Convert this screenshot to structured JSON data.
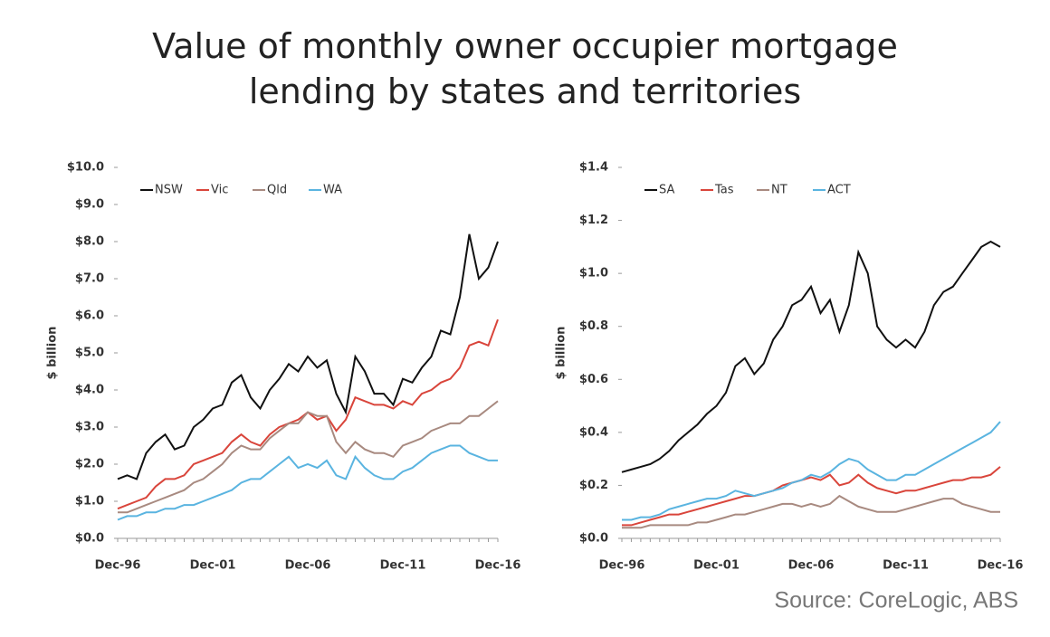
{
  "title": "Value of monthly owner occupier mortgage lending by states and territories",
  "source": "Source: CoreLogic, ABS",
  "chart_data": [
    {
      "type": "line",
      "y_label": "$ billion",
      "legend": "top-left",
      "categories": [
        "Dec-96",
        null,
        null,
        null,
        null,
        null,
        null,
        null,
        null,
        null,
        "Dec-01",
        null,
        null,
        null,
        null,
        null,
        null,
        null,
        null,
        null,
        "Dec-06",
        null,
        null,
        null,
        null,
        null,
        null,
        null,
        null,
        null,
        "Dec-11",
        null,
        null,
        null,
        null,
        null,
        null,
        null,
        null,
        null,
        "Dec-16"
      ],
      "ylim": [
        0,
        10
      ],
      "yticks": [
        {
          "value": 0,
          "label": "$0.0"
        },
        {
          "value": 1,
          "label": "$1.0"
        },
        {
          "value": 2,
          "label": "$2.0"
        },
        {
          "value": 3,
          "label": "$3.0"
        },
        {
          "value": 4,
          "label": "$4.0"
        },
        {
          "value": 5,
          "label": "$5.0"
        },
        {
          "value": 6,
          "label": "$6.0"
        },
        {
          "value": 7,
          "label": "$7.0"
        },
        {
          "value": 8,
          "label": "$8.0"
        },
        {
          "value": 9,
          "label": "$9.0"
        },
        {
          "value": 10,
          "label": "$10.0"
        }
      ],
      "series": [
        {
          "name": "NSW",
          "color": "#111111",
          "values": [
            1.6,
            1.7,
            1.6,
            2.3,
            2.6,
            2.8,
            2.4,
            2.5,
            3.0,
            3.2,
            3.5,
            3.6,
            4.2,
            4.4,
            3.8,
            3.5,
            4.0,
            4.3,
            4.7,
            4.5,
            4.9,
            4.6,
            4.8,
            3.9,
            3.4,
            4.9,
            4.5,
            3.9,
            3.9,
            3.6,
            4.3,
            4.2,
            4.6,
            4.9,
            5.6,
            5.5,
            6.5,
            8.2,
            7.0,
            7.3,
            8.0
          ]
        },
        {
          "name": "Vic",
          "color": "#d9453b",
          "values": [
            0.8,
            0.9,
            1.0,
            1.1,
            1.4,
            1.6,
            1.6,
            1.7,
            2.0,
            2.1,
            2.2,
            2.3,
            2.6,
            2.8,
            2.6,
            2.5,
            2.8,
            3.0,
            3.1,
            3.2,
            3.4,
            3.2,
            3.3,
            2.9,
            3.2,
            3.8,
            3.7,
            3.6,
            3.6,
            3.5,
            3.7,
            3.6,
            3.9,
            4.0,
            4.2,
            4.3,
            4.6,
            5.2,
            5.3,
            5.2,
            5.9
          ]
        },
        {
          "name": "Qld",
          "color": "#a88a80",
          "values": [
            0.7,
            0.7,
            0.8,
            0.9,
            1.0,
            1.1,
            1.2,
            1.3,
            1.5,
            1.6,
            1.8,
            2.0,
            2.3,
            2.5,
            2.4,
            2.4,
            2.7,
            2.9,
            3.1,
            3.1,
            3.4,
            3.3,
            3.3,
            2.6,
            2.3,
            2.6,
            2.4,
            2.3,
            2.3,
            2.2,
            2.5,
            2.6,
            2.7,
            2.9,
            3.0,
            3.1,
            3.1,
            3.3,
            3.3,
            3.5,
            3.7
          ]
        },
        {
          "name": "WA",
          "color": "#5ab4e0",
          "values": [
            0.5,
            0.6,
            0.6,
            0.7,
            0.7,
            0.8,
            0.8,
            0.9,
            0.9,
            1.0,
            1.1,
            1.2,
            1.3,
            1.5,
            1.6,
            1.6,
            1.8,
            2.0,
            2.2,
            1.9,
            2.0,
            1.9,
            2.1,
            1.7,
            1.6,
            2.2,
            1.9,
            1.7,
            1.6,
            1.6,
            1.8,
            1.9,
            2.1,
            2.3,
            2.4,
            2.5,
            2.5,
            2.3,
            2.2,
            2.1,
            2.1
          ]
        }
      ]
    },
    {
      "type": "line",
      "y_label": "$ billion",
      "legend": "top-left",
      "categories": [
        "Dec-96",
        null,
        null,
        null,
        null,
        null,
        null,
        null,
        null,
        null,
        "Dec-01",
        null,
        null,
        null,
        null,
        null,
        null,
        null,
        null,
        null,
        "Dec-06",
        null,
        null,
        null,
        null,
        null,
        null,
        null,
        null,
        null,
        "Dec-11",
        null,
        null,
        null,
        null,
        null,
        null,
        null,
        null,
        null,
        "Dec-16"
      ],
      "ylim": [
        0,
        1.4
      ],
      "yticks": [
        {
          "value": 0,
          "label": "$0.0"
        },
        {
          "value": 0.2,
          "label": "$0.2"
        },
        {
          "value": 0.4,
          "label": "$0.4"
        },
        {
          "value": 0.6,
          "label": "$0.6"
        },
        {
          "value": 0.8,
          "label": "$0.8"
        },
        {
          "value": 1,
          "label": "$1.0"
        },
        {
          "value": 1.2,
          "label": "$1.2"
        },
        {
          "value": 1.4,
          "label": "$1.4"
        }
      ],
      "series": [
        {
          "name": "SA",
          "color": "#111111",
          "values": [
            0.25,
            0.26,
            0.27,
            0.28,
            0.3,
            0.33,
            0.37,
            0.4,
            0.43,
            0.47,
            0.5,
            0.55,
            0.65,
            0.68,
            0.62,
            0.66,
            0.75,
            0.8,
            0.88,
            0.9,
            0.95,
            0.85,
            0.9,
            0.78,
            0.88,
            1.08,
            1.0,
            0.8,
            0.75,
            0.72,
            0.75,
            0.72,
            0.78,
            0.88,
            0.93,
            0.95,
            1.0,
            1.05,
            1.1,
            1.12,
            1.1
          ]
        },
        {
          "name": "Tas",
          "color": "#d9453b",
          "values": [
            0.05,
            0.05,
            0.06,
            0.07,
            0.08,
            0.09,
            0.09,
            0.1,
            0.11,
            0.12,
            0.13,
            0.14,
            0.15,
            0.16,
            0.16,
            0.17,
            0.18,
            0.2,
            0.21,
            0.22,
            0.23,
            0.22,
            0.24,
            0.2,
            0.21,
            0.24,
            0.21,
            0.19,
            0.18,
            0.17,
            0.18,
            0.18,
            0.19,
            0.2,
            0.21,
            0.22,
            0.22,
            0.23,
            0.23,
            0.24,
            0.27
          ]
        },
        {
          "name": "NT",
          "color": "#a88a80",
          "values": [
            0.04,
            0.04,
            0.04,
            0.05,
            0.05,
            0.05,
            0.05,
            0.05,
            0.06,
            0.06,
            0.07,
            0.08,
            0.09,
            0.09,
            0.1,
            0.11,
            0.12,
            0.13,
            0.13,
            0.12,
            0.13,
            0.12,
            0.13,
            0.16,
            0.14,
            0.12,
            0.11,
            0.1,
            0.1,
            0.1,
            0.11,
            0.12,
            0.13,
            0.14,
            0.15,
            0.15,
            0.13,
            0.12,
            0.11,
            0.1,
            0.1
          ]
        },
        {
          "name": "ACT",
          "color": "#5ab4e0",
          "values": [
            0.07,
            0.07,
            0.08,
            0.08,
            0.09,
            0.11,
            0.12,
            0.13,
            0.14,
            0.15,
            0.15,
            0.16,
            0.18,
            0.17,
            0.16,
            0.17,
            0.18,
            0.19,
            0.21,
            0.22,
            0.24,
            0.23,
            0.25,
            0.28,
            0.3,
            0.29,
            0.26,
            0.24,
            0.22,
            0.22,
            0.24,
            0.24,
            0.26,
            0.28,
            0.3,
            0.32,
            0.34,
            0.36,
            0.38,
            0.4,
            0.44
          ]
        }
      ]
    }
  ]
}
